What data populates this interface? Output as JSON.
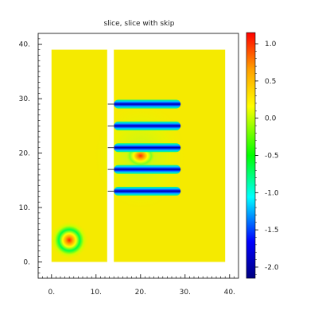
{
  "chart_data": {
    "type": "heatmap",
    "title": "slice, slice with skip",
    "xlabel": "",
    "ylabel": "",
    "xlim": [
      -3,
      42
    ],
    "ylim": [
      -3,
      42
    ],
    "x_ticks": [
      "0.",
      "10.",
      "20.",
      "30.",
      "40."
    ],
    "y_ticks": [
      "0.",
      "10.",
      "20.",
      "30.",
      "40."
    ],
    "colorbar": {
      "range": [
        -2.15,
        1.15
      ],
      "ticks": [
        "1.0",
        "0.5",
        "0.0",
        "-0.5",
        "-1.0",
        "-1.5",
        "-2.0"
      ],
      "colormap": [
        "#00007f",
        "#0000ff",
        "#00ffff",
        "#00ff00",
        "#ffff00",
        "#ff0000"
      ]
    },
    "regions": [
      {
        "name": "left slab",
        "x": [
          0,
          12.5
        ],
        "y": [
          0,
          39
        ],
        "value": 0.1
      },
      {
        "name": "right slab",
        "x": [
          14,
          39
        ],
        "y": [
          0,
          39
        ],
        "value": 0.1
      }
    ],
    "features": [
      {
        "name": "source",
        "x": 4,
        "y": 4,
        "value": 1.1
      },
      {
        "name": "central hot spot",
        "x": 20,
        "y": 19.5,
        "value": 0.9
      },
      {
        "name": "slit bar 1",
        "x": [
          13,
          29
        ],
        "y": 13,
        "value": -2.1
      },
      {
        "name": "slit bar 2",
        "x": [
          13,
          29
        ],
        "y": 17,
        "value": -2.1
      },
      {
        "name": "slit bar 3",
        "x": [
          13,
          29
        ],
        "y": 21,
        "value": -2.1
      },
      {
        "name": "slit bar 4",
        "x": [
          13,
          29
        ],
        "y": 25,
        "value": -2.1
      },
      {
        "name": "slit bar 5",
        "x": [
          13,
          29
        ],
        "y": 29,
        "value": -2.1
      }
    ]
  }
}
